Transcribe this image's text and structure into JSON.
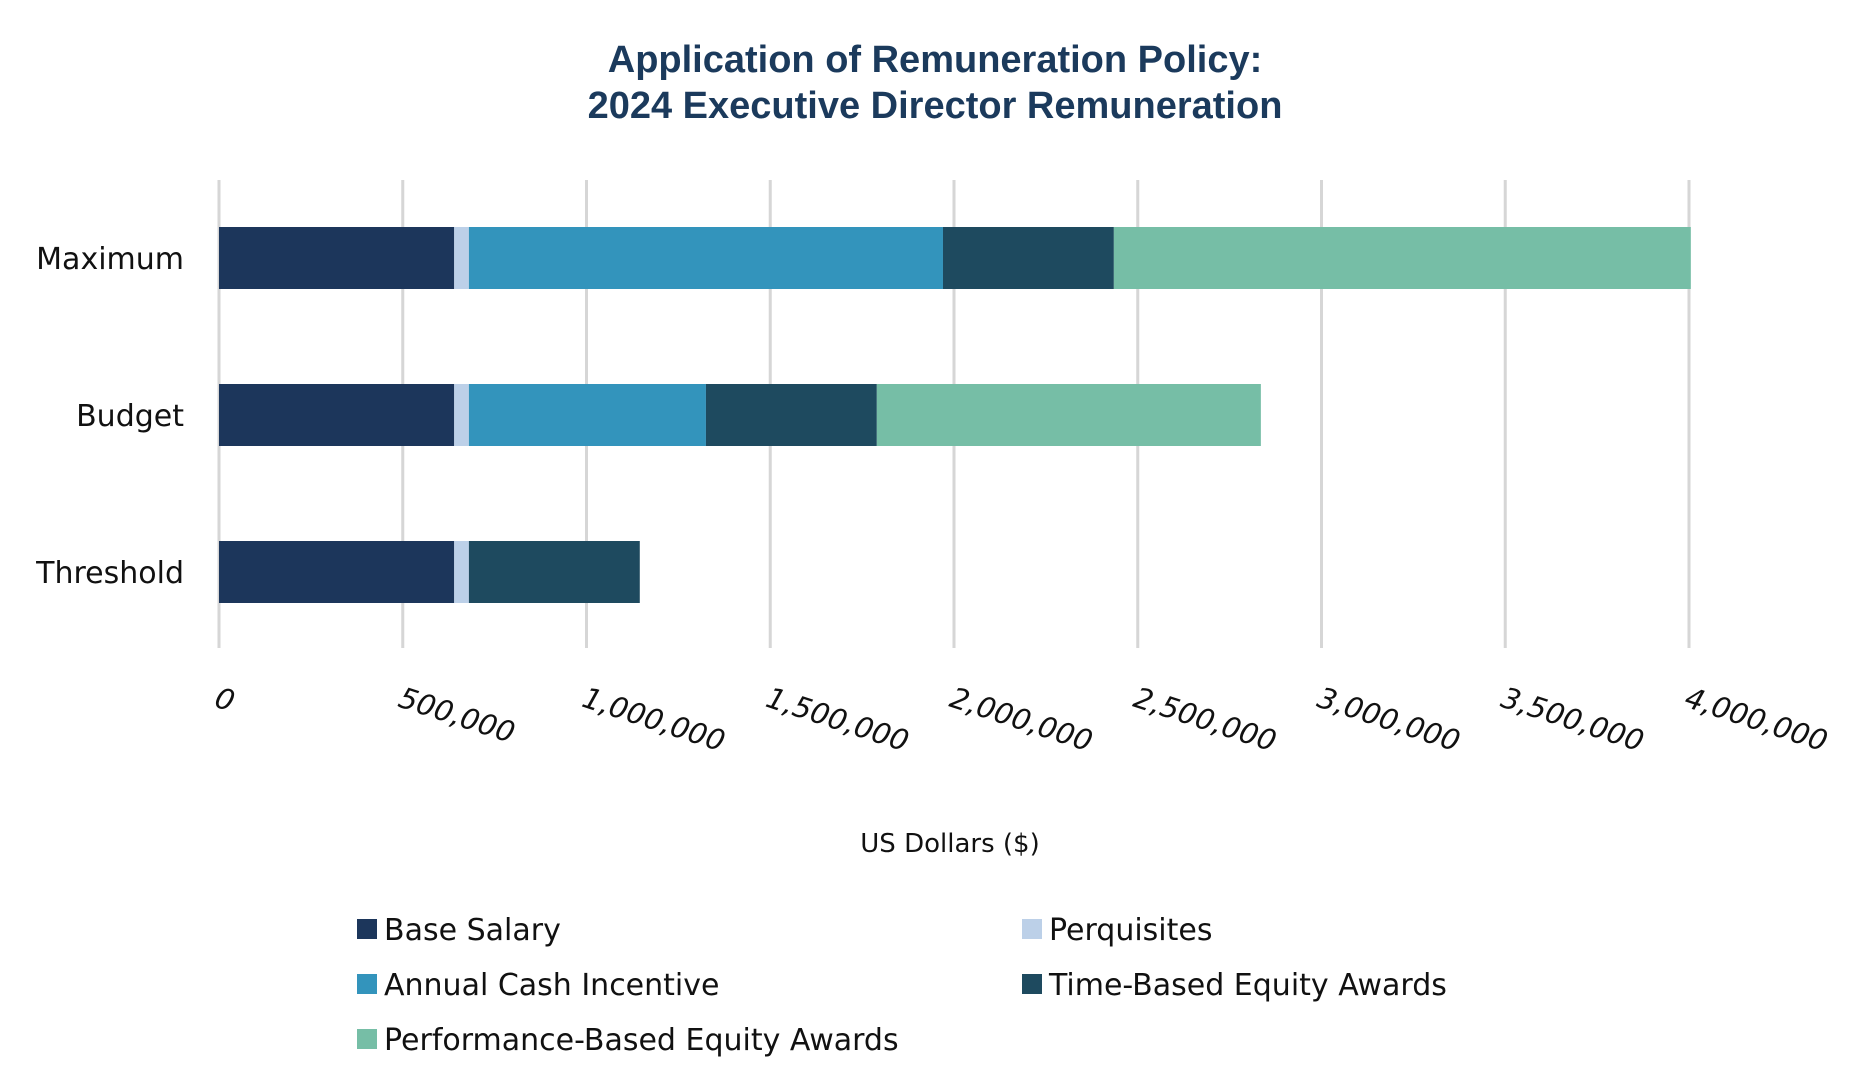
{
  "chart_data": {
    "type": "bar",
    "orientation": "horizontal",
    "stacked": true,
    "title_lines": [
      "Application of Remuneration Policy:",
      "2024 Executive Director Remuneration"
    ],
    "categories": [
      "Maximum",
      "Budget",
      "Threshold"
    ],
    "xlabel": "US Dollars ($)",
    "ylabel": "",
    "xlim": [
      0,
      4000000
    ],
    "x_ticks": [
      0,
      500000,
      1000000,
      1500000,
      2000000,
      2500000,
      3000000,
      3500000,
      4000000
    ],
    "x_tick_labels": [
      "0",
      "500,000",
      "1,000,000",
      "1,500,000",
      "2,000,000",
      "2,500,000",
      "3,000,000",
      "3,500,000",
      "4,000,000"
    ],
    "grid": true,
    "legend_position": "bottom",
    "series": [
      {
        "name": "Base Salary",
        "color": "#1c365b",
        "values": [
          640000,
          640000,
          640000
        ]
      },
      {
        "name": "Perquisites",
        "color": "#bcd0e8",
        "values": [
          40000,
          40000,
          40000
        ]
      },
      {
        "name": "Annual Cash Incentive",
        "color": "#3394bc",
        "values": [
          1290000,
          645000,
          0
        ]
      },
      {
        "name": "Time-Based Equity Awards",
        "color": "#1e4a5f",
        "values": [
          465000,
          465000,
          465000
        ]
      },
      {
        "name": "Performance-Based Equity Awards",
        "color": "#76bea6",
        "values": [
          1570000,
          1045000,
          0
        ]
      }
    ]
  }
}
